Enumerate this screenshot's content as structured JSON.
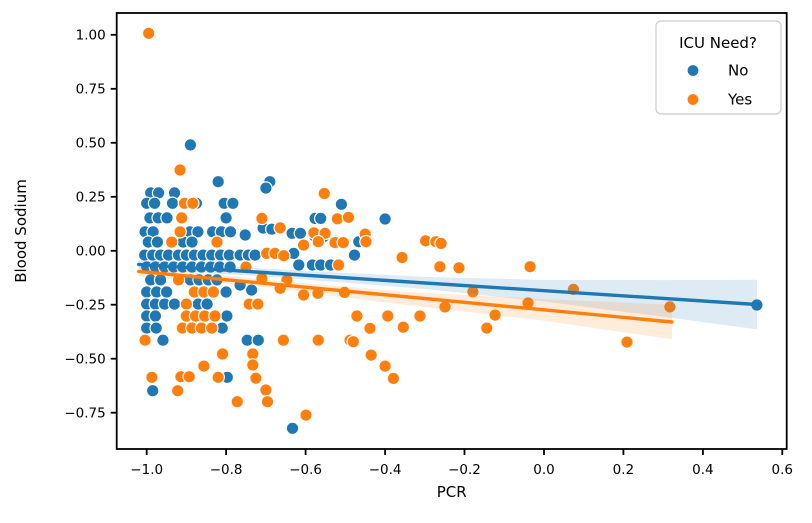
{
  "chart_data": {
    "type": "scatter",
    "title": "",
    "xlabel": "PCR",
    "ylabel": "Blood Sodium",
    "xlim": [
      -1.0755,
      0.611
    ],
    "ylim": [
      -0.918,
      1.101
    ],
    "grid": false,
    "background": "#ffffff",
    "spine_color": "#000000",
    "xticks": {
      "values": [
        -1.0,
        -0.8,
        -0.6,
        -0.4,
        -0.2,
        0.0,
        0.2,
        0.4,
        0.6
      ],
      "labels": [
        "−1.0",
        "−0.8",
        "−0.6",
        "−0.4",
        "−0.2",
        "0.0",
        "0.2",
        "0.4",
        "0.6"
      ]
    },
    "yticks": {
      "values": [
        1.0,
        0.75,
        0.5,
        0.25,
        0.0,
        -0.25,
        -0.5,
        -0.75
      ],
      "labels": [
        "1.00",
        "0.75",
        "0.50",
        "0.25",
        "0.00",
        "−0.25",
        "−0.50",
        "−0.75"
      ]
    },
    "legend": {
      "title": "ICU Need?",
      "position": "upper right",
      "entries": [
        {
          "label": "No",
          "color": "#1f77b4"
        },
        {
          "label": "Yes",
          "color": "#ff7f0e"
        }
      ]
    },
    "point_style": {
      "radius": 6.2,
      "edge_color": "#ffffff"
    },
    "series": [
      {
        "name": "No",
        "color": "#1f77b4",
        "points": [
          [
            -0.89,
            0.49
          ],
          [
            -0.82,
            0.32
          ],
          [
            -0.69,
            0.32
          ],
          [
            -0.7,
            0.29
          ],
          [
            -0.99,
            0.268
          ],
          [
            -0.97,
            0.268
          ],
          [
            -0.93,
            0.268
          ],
          [
            -0.51,
            0.215
          ],
          [
            -1.0,
            0.22
          ],
          [
            -0.98,
            0.22
          ],
          [
            -0.935,
            0.22
          ],
          [
            -0.875,
            0.22
          ],
          [
            -0.805,
            0.22
          ],
          [
            -0.783,
            0.22
          ],
          [
            -0.4,
            0.147
          ],
          [
            -0.992,
            0.152
          ],
          [
            -0.971,
            0.152
          ],
          [
            -0.949,
            0.152
          ],
          [
            -0.8,
            0.152
          ],
          [
            -0.576,
            0.15
          ],
          [
            -0.562,
            0.15
          ],
          [
            -0.707,
            0.105
          ],
          [
            -0.685,
            0.1
          ],
          [
            -1.004,
            0.088
          ],
          [
            -0.984,
            0.088
          ],
          [
            -0.891,
            0.088
          ],
          [
            -0.871,
            0.088
          ],
          [
            -0.834,
            0.088
          ],
          [
            -0.812,
            0.088
          ],
          [
            -0.789,
            0.088
          ],
          [
            -0.634,
            0.081
          ],
          [
            -0.613,
            0.081
          ],
          [
            -0.576,
            0.065
          ],
          [
            -0.555,
            0.065
          ],
          [
            -0.752,
            0.073
          ],
          [
            -0.996,
            0.04
          ],
          [
            -0.973,
            0.04
          ],
          [
            -0.908,
            0.04
          ],
          [
            -0.886,
            0.04
          ],
          [
            -0.466,
            0.042
          ],
          [
            -1.005,
            -0.02
          ],
          [
            -0.985,
            -0.02
          ],
          [
            -0.965,
            -0.02
          ],
          [
            -0.945,
            -0.02
          ],
          [
            -0.92,
            -0.02
          ],
          [
            -0.9,
            -0.02
          ],
          [
            -0.88,
            -0.02
          ],
          [
            -0.858,
            -0.02
          ],
          [
            -0.836,
            -0.02
          ],
          [
            -0.814,
            -0.02
          ],
          [
            -0.792,
            -0.02
          ],
          [
            -0.765,
            -0.02
          ],
          [
            -0.744,
            -0.02
          ],
          [
            -0.727,
            -0.02
          ],
          [
            -0.63,
            -0.012
          ],
          [
            -0.477,
            -0.02
          ],
          [
            -1.0,
            -0.075
          ],
          [
            -0.978,
            -0.075
          ],
          [
            -0.955,
            -0.075
          ],
          [
            -0.932,
            -0.075
          ],
          [
            -0.909,
            -0.075
          ],
          [
            -0.886,
            -0.075
          ],
          [
            -0.862,
            -0.075
          ],
          [
            -0.839,
            -0.075
          ],
          [
            -0.816,
            -0.075
          ],
          [
            -0.79,
            -0.075
          ],
          [
            -0.617,
            -0.066
          ],
          [
            -0.583,
            -0.066
          ],
          [
            -0.562,
            -0.066
          ],
          [
            -0.537,
            -0.066
          ],
          [
            -0.99,
            -0.135
          ],
          [
            -0.965,
            -0.135
          ],
          [
            -0.89,
            -0.135
          ],
          [
            -0.868,
            -0.135
          ],
          [
            -0.845,
            -0.135
          ],
          [
            -0.823,
            -0.135
          ],
          [
            -0.765,
            -0.159
          ],
          [
            -1.0,
            -0.191
          ],
          [
            -0.975,
            -0.191
          ],
          [
            -0.95,
            -0.191
          ],
          [
            -0.8,
            -0.191
          ],
          [
            -0.736,
            -0.182
          ],
          [
            -1.0,
            -0.247
          ],
          [
            -0.978,
            -0.247
          ],
          [
            -0.955,
            -0.247
          ],
          [
            -0.93,
            -0.247
          ],
          [
            -0.87,
            -0.247
          ],
          [
            -0.848,
            -0.247
          ],
          [
            -1.0,
            -0.302
          ],
          [
            -0.978,
            -0.302
          ],
          [
            -0.798,
            -0.302
          ],
          [
            -1.0,
            -0.358
          ],
          [
            -0.976,
            -0.358
          ],
          [
            -0.81,
            -0.358
          ],
          [
            -0.959,
            -0.414
          ],
          [
            -0.747,
            -0.414
          ],
          [
            -0.719,
            -0.414
          ],
          [
            -0.797,
            -0.586
          ],
          [
            -0.985,
            -0.648
          ],
          [
            -0.633,
            -0.822
          ],
          [
            0.536,
            -0.251
          ]
        ],
        "regression_line": {
          "x": [
            -1.02,
            0.536
          ],
          "y": [
            -0.063,
            -0.249
          ]
        },
        "ci_band": {
          "x": [
            -1.02,
            -0.7,
            -0.3,
            0.0,
            0.3,
            0.536
          ],
          "top": [
            -0.043,
            -0.083,
            -0.121,
            -0.135,
            -0.136,
            -0.134
          ],
          "bottom": [
            -0.083,
            -0.119,
            -0.177,
            -0.235,
            -0.306,
            -0.364
          ],
          "opacity": 0.15
        }
      },
      {
        "name": "Yes",
        "color": "#ff7f0e",
        "points": [
          [
            -0.995,
            1.007
          ],
          [
            -0.916,
            0.374
          ],
          [
            -0.553,
            0.265
          ],
          [
            -0.905,
            0.22
          ],
          [
            -0.884,
            0.22
          ],
          [
            -0.912,
            0.152
          ],
          [
            -0.71,
            0.15
          ],
          [
            -0.52,
            0.148
          ],
          [
            -0.492,
            0.155
          ],
          [
            -0.664,
            0.106
          ],
          [
            -0.916,
            0.088
          ],
          [
            -0.579,
            0.083
          ],
          [
            -0.551,
            0.081
          ],
          [
            -0.45,
            0.077
          ],
          [
            -0.937,
            0.04
          ],
          [
            -0.823,
            0.04
          ],
          [
            -0.605,
            0.026
          ],
          [
            -0.568,
            0.042
          ],
          [
            -0.526,
            0.038
          ],
          [
            -0.505,
            0.038
          ],
          [
            -0.448,
            0.042
          ],
          [
            -0.298,
            0.046
          ],
          [
            -0.272,
            0.042
          ],
          [
            -0.259,
            0.034
          ],
          [
            -0.698,
            -0.012
          ],
          [
            -0.677,
            -0.012
          ],
          [
            -0.655,
            -0.023
          ],
          [
            -0.357,
            -0.031
          ],
          [
            -0.75,
            -0.075
          ],
          [
            -0.517,
            -0.066
          ],
          [
            -0.262,
            -0.074
          ],
          [
            -0.214,
            -0.079
          ],
          [
            -0.035,
            -0.074
          ],
          [
            -0.92,
            -0.135
          ],
          [
            -0.71,
            -0.128
          ],
          [
            -0.647,
            -0.136
          ],
          [
            -0.88,
            -0.191
          ],
          [
            -0.856,
            -0.191
          ],
          [
            -0.832,
            -0.191
          ],
          [
            -0.664,
            -0.174
          ],
          [
            -0.605,
            -0.205
          ],
          [
            -0.569,
            -0.197
          ],
          [
            -0.502,
            -0.193
          ],
          [
            -0.179,
            -0.19
          ],
          [
            0.074,
            -0.179
          ],
          [
            -0.9,
            -0.247
          ],
          [
            -0.742,
            -0.247
          ],
          [
            -0.72,
            -0.247
          ],
          [
            -0.249,
            -0.26
          ],
          [
            -0.04,
            -0.242
          ],
          [
            0.317,
            -0.26
          ],
          [
            -0.9,
            -0.302
          ],
          [
            -0.877,
            -0.302
          ],
          [
            -0.854,
            -0.302
          ],
          [
            -0.828,
            -0.302
          ],
          [
            -0.471,
            -0.302
          ],
          [
            -0.393,
            -0.302
          ],
          [
            -0.312,
            -0.302
          ],
          [
            -0.123,
            -0.298
          ],
          [
            -0.91,
            -0.358
          ],
          [
            -0.886,
            -0.358
          ],
          [
            -0.862,
            -0.358
          ],
          [
            -0.836,
            -0.358
          ],
          [
            -0.438,
            -0.359
          ],
          [
            -0.354,
            -0.354
          ],
          [
            -0.144,
            -0.358
          ],
          [
            -1.004,
            -0.414
          ],
          [
            -0.656,
            -0.414
          ],
          [
            -0.568,
            -0.414
          ],
          [
            -0.488,
            -0.414
          ],
          [
            -0.48,
            -0.421
          ],
          [
            0.209,
            -0.423
          ],
          [
            -0.809,
            -0.478
          ],
          [
            -0.733,
            -0.478
          ],
          [
            -0.435,
            -0.483
          ],
          [
            -0.856,
            -0.534
          ],
          [
            -0.733,
            -0.529
          ],
          [
            -0.4,
            -0.534
          ],
          [
            -0.987,
            -0.586
          ],
          [
            -0.914,
            -0.583
          ],
          [
            -0.893,
            -0.583
          ],
          [
            -0.82,
            -0.586
          ],
          [
            -0.725,
            -0.59
          ],
          [
            -0.379,
            -0.591
          ],
          [
            -0.922,
            -0.648
          ],
          [
            -0.7,
            -0.645
          ],
          [
            -0.772,
            -0.699
          ],
          [
            -0.696,
            -0.699
          ],
          [
            -0.599,
            -0.761
          ]
        ],
        "regression_line": {
          "x": [
            -1.02,
            0.322
          ],
          "y": [
            -0.0955,
            -0.33
          ]
        },
        "ci_band": {
          "x": [
            -1.02,
            -0.7,
            -0.35,
            0.0,
            0.322
          ],
          "top": [
            -0.074,
            -0.134,
            -0.19,
            -0.224,
            -0.25
          ],
          "bottom": [
            -0.118,
            -0.17,
            -0.25,
            -0.324,
            -0.41
          ],
          "opacity": 0.15
        }
      }
    ]
  }
}
